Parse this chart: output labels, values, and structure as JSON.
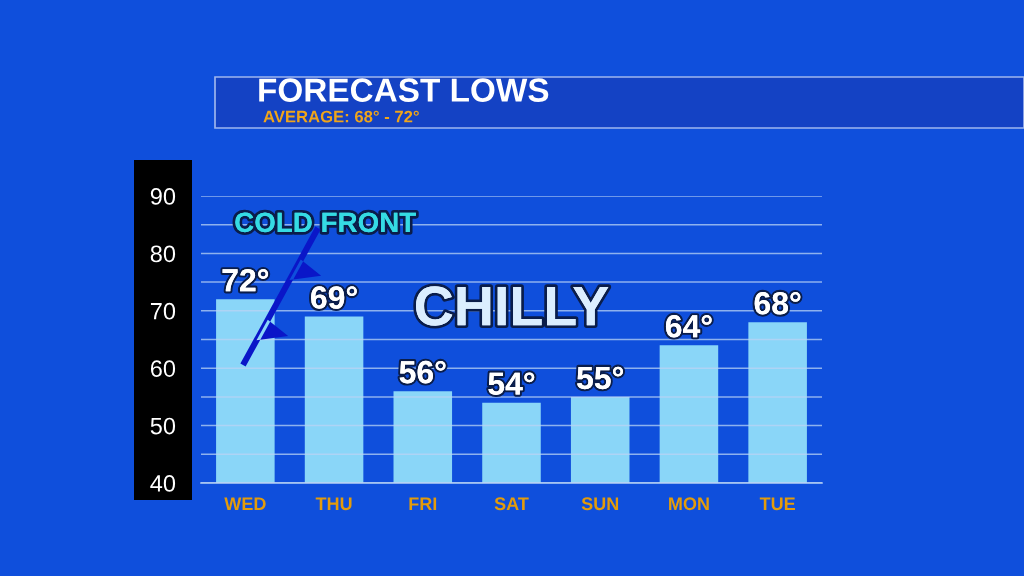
{
  "chart_data": {
    "type": "bar",
    "title": "FORECAST LOWS",
    "subtitle": "AVERAGE: 68° - 72°",
    "categories": [
      "WED",
      "THU",
      "FRI",
      "SAT",
      "SUN",
      "MON",
      "TUE"
    ],
    "values": [
      72,
      69,
      56,
      54,
      55,
      64,
      68
    ],
    "value_labels": [
      "72°",
      "69°",
      "56°",
      "54°",
      "55°",
      "64°",
      "68°"
    ],
    "color": "#8ad6f8",
    "ylim": [
      40,
      90
    ],
    "yticks": [
      40,
      {
        "value": 45,
        "label": null
      },
      50,
      {
        "value": 55,
        "label": null
      },
      60,
      {
        "value": 65,
        "label": null
      },
      70,
      {
        "value": 75,
        "label": null
      },
      80,
      {
        "value": 85,
        "label": null
      },
      90
    ],
    "grid": "y",
    "annotations": [
      "COLD FRONT",
      "CHILLY"
    ]
  }
}
